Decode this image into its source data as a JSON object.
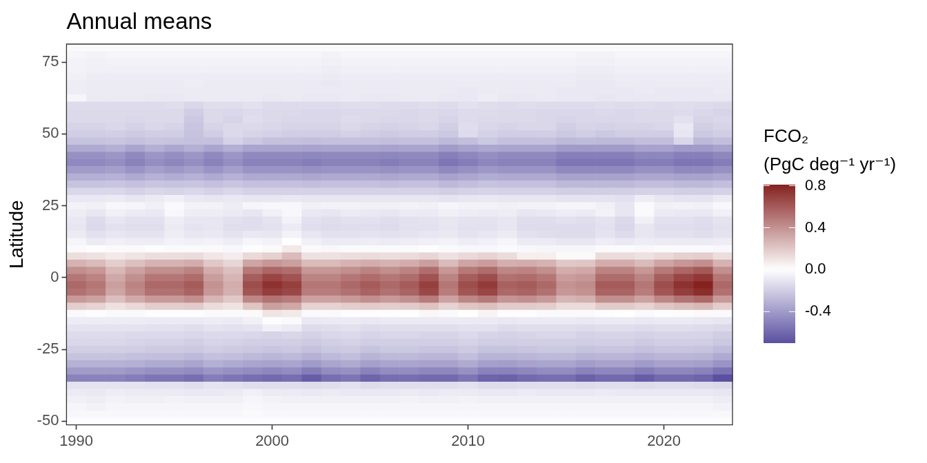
{
  "chart_data": {
    "type": "heatmap",
    "title": "Annual means",
    "ylabel": "Latitude",
    "clabel": "FCO₂\n(PgC deg⁻¹ yr⁻¹)",
    "categories": [
      "1990",
      null,
      null,
      null,
      null,
      null,
      null,
      null,
      null,
      null,
      "2000",
      null,
      null,
      null,
      null,
      null,
      null,
      null,
      null,
      null,
      "2010",
      null,
      null,
      null,
      null,
      null,
      null,
      null,
      null,
      null,
      "2020",
      null,
      null,
      null
    ],
    "y_categories": [
      null,
      null,
      "75",
      null,
      null,
      null,
      null,
      null,
      null,
      null,
      null,
      null,
      "50",
      null,
      null,
      null,
      null,
      null,
      null,
      null,
      null,
      null,
      "25",
      null,
      null,
      null,
      null,
      null,
      null,
      null,
      null,
      null,
      "0",
      null,
      null,
      null,
      null,
      null,
      null,
      null,
      null,
      null,
      "-25",
      null,
      null,
      null,
      null,
      null,
      null,
      null,
      null,
      null,
      "-50"
    ],
    "clim": [
      -0.7,
      0.81
    ],
    "cticks": [
      0.8,
      0.4,
      {
        "value": 0,
        "label": "0.0"
      },
      -0.4
    ],
    "cells": [
      [
        -0.02,
        -0.02,
        -0.02,
        -0.02,
        -0.02,
        -0.02,
        -0.02,
        -0.02,
        -0.02,
        -0.02,
        -0.02,
        -0.02,
        -0.02,
        -0.02,
        -0.02,
        -0.02,
        -0.02,
        -0.02,
        -0.02,
        -0.02,
        -0.02,
        -0.02,
        -0.02,
        -0.02,
        -0.02,
        -0.02,
        -0.02,
        -0.02,
        -0.02,
        -0.02,
        -0.02,
        -0.02,
        -0.02,
        -0.02
      ],
      [
        -0.04,
        -0.05,
        -0.04,
        -0.04,
        -0.04,
        -0.04,
        -0.04,
        -0.04,
        -0.04,
        -0.04,
        -0.04,
        -0.04,
        -0.04,
        -0.05,
        -0.04,
        -0.04,
        -0.04,
        -0.04,
        -0.04,
        -0.04,
        -0.04,
        -0.04,
        -0.04,
        -0.04,
        -0.04,
        -0.04,
        -0.05,
        -0.05,
        -0.04,
        -0.04,
        -0.04,
        -0.04,
        -0.04,
        -0.04
      ],
      [
        -0.05,
        -0.06,
        -0.05,
        -0.05,
        -0.05,
        -0.05,
        -0.05,
        -0.05,
        -0.05,
        -0.05,
        -0.05,
        -0.05,
        -0.05,
        -0.06,
        -0.05,
        -0.05,
        -0.05,
        -0.05,
        -0.05,
        -0.05,
        -0.05,
        -0.05,
        -0.05,
        -0.05,
        -0.05,
        -0.05,
        -0.06,
        -0.06,
        -0.05,
        -0.05,
        -0.05,
        -0.05,
        -0.05,
        -0.05
      ],
      [
        -0.05,
        -0.06,
        -0.06,
        -0.06,
        -0.06,
        -0.06,
        -0.06,
        -0.06,
        -0.06,
        -0.06,
        -0.06,
        -0.06,
        -0.06,
        -0.07,
        -0.06,
        -0.06,
        -0.06,
        -0.06,
        -0.06,
        -0.06,
        -0.06,
        -0.06,
        -0.06,
        -0.06,
        -0.06,
        -0.06,
        -0.07,
        -0.07,
        -0.06,
        -0.06,
        -0.06,
        -0.06,
        -0.06,
        -0.06
      ],
      [
        -0.06,
        -0.07,
        -0.07,
        -0.07,
        -0.07,
        -0.07,
        -0.07,
        -0.07,
        -0.07,
        -0.07,
        -0.07,
        -0.07,
        -0.07,
        -0.08,
        -0.07,
        -0.07,
        -0.07,
        -0.07,
        -0.07,
        -0.07,
        -0.07,
        -0.07,
        -0.07,
        -0.07,
        -0.07,
        -0.07,
        -0.08,
        -0.08,
        -0.07,
        -0.07,
        -0.07,
        -0.07,
        -0.07,
        -0.07
      ],
      [
        -0.07,
        -0.08,
        -0.08,
        -0.08,
        -0.08,
        -0.08,
        -0.07,
        -0.08,
        -0.08,
        -0.08,
        -0.08,
        -0.08,
        -0.08,
        -0.09,
        -0.08,
        -0.08,
        -0.08,
        -0.08,
        -0.08,
        -0.08,
        -0.08,
        -0.08,
        -0.08,
        -0.08,
        -0.08,
        -0.08,
        -0.09,
        -0.09,
        -0.08,
        -0.08,
        -0.08,
        -0.08,
        -0.08,
        -0.08
      ],
      [
        -0.07,
        -0.08,
        -0.08,
        -0.08,
        -0.08,
        -0.08,
        -0.08,
        -0.08,
        -0.08,
        -0.08,
        -0.08,
        -0.08,
        -0.08,
        -0.08,
        -0.08,
        -0.08,
        -0.08,
        -0.08,
        -0.08,
        -0.08,
        -0.09,
        -0.08,
        -0.08,
        -0.08,
        -0.08,
        -0.09,
        -0.09,
        -0.09,
        -0.09,
        -0.08,
        -0.09,
        -0.09,
        -0.09,
        -0.08
      ],
      [
        -0.04,
        -0.08,
        -0.08,
        -0.08,
        -0.09,
        -0.09,
        -0.08,
        -0.08,
        -0.08,
        -0.08,
        -0.09,
        -0.08,
        -0.09,
        -0.09,
        -0.08,
        -0.09,
        -0.09,
        -0.08,
        -0.08,
        -0.09,
        -0.09,
        -0.07,
        -0.09,
        -0.09,
        -0.08,
        -0.09,
        -0.09,
        -0.1,
        -0.09,
        -0.09,
        -0.09,
        -0.09,
        -0.09,
        -0.09
      ],
      [
        -0.14,
        -0.14,
        -0.14,
        -0.14,
        -0.14,
        -0.13,
        -0.16,
        -0.13,
        -0.13,
        -0.12,
        -0.14,
        -0.14,
        -0.14,
        -0.14,
        -0.13,
        -0.13,
        -0.14,
        -0.14,
        -0.13,
        -0.14,
        -0.12,
        -0.13,
        -0.14,
        -0.13,
        -0.14,
        -0.14,
        -0.14,
        -0.13,
        -0.14,
        -0.13,
        -0.14,
        -0.13,
        -0.14,
        -0.15
      ],
      [
        -0.15,
        -0.15,
        -0.15,
        -0.15,
        -0.15,
        -0.15,
        -0.2,
        -0.15,
        -0.16,
        -0.14,
        -0.15,
        -0.15,
        -0.16,
        -0.16,
        -0.15,
        -0.15,
        -0.15,
        -0.16,
        -0.15,
        -0.16,
        -0.14,
        -0.14,
        -0.15,
        -0.15,
        -0.16,
        -0.16,
        -0.16,
        -0.15,
        -0.16,
        -0.15,
        -0.15,
        -0.14,
        -0.16,
        -0.17
      ],
      [
        -0.15,
        -0.15,
        -0.15,
        -0.16,
        -0.15,
        -0.15,
        -0.22,
        -0.15,
        -0.17,
        -0.13,
        -0.15,
        -0.16,
        -0.16,
        -0.16,
        -0.14,
        -0.15,
        -0.16,
        -0.16,
        -0.15,
        -0.17,
        -0.14,
        -0.15,
        -0.15,
        -0.15,
        -0.16,
        -0.17,
        -0.16,
        -0.16,
        -0.16,
        -0.15,
        -0.15,
        -0.12,
        -0.17,
        -0.16
      ],
      [
        -0.17,
        -0.17,
        -0.16,
        -0.18,
        -0.16,
        -0.17,
        -0.23,
        -0.17,
        -0.15,
        -0.15,
        -0.16,
        -0.17,
        -0.17,
        -0.17,
        -0.15,
        -0.17,
        -0.18,
        -0.17,
        -0.16,
        -0.19,
        -0.13,
        -0.16,
        -0.17,
        -0.16,
        -0.16,
        -0.19,
        -0.17,
        -0.18,
        -0.17,
        -0.17,
        -0.16,
        -0.09,
        -0.19,
        -0.17
      ],
      [
        -0.2,
        -0.2,
        -0.19,
        -0.21,
        -0.2,
        -0.2,
        -0.24,
        -0.2,
        -0.15,
        -0.17,
        -0.18,
        -0.2,
        -0.2,
        -0.2,
        -0.18,
        -0.2,
        -0.21,
        -0.2,
        -0.2,
        -0.22,
        -0.14,
        -0.18,
        -0.2,
        -0.2,
        -0.19,
        -0.22,
        -0.2,
        -0.22,
        -0.2,
        -0.2,
        -0.2,
        -0.1,
        -0.22,
        -0.2
      ],
      [
        -0.24,
        -0.24,
        -0.23,
        -0.25,
        -0.23,
        -0.24,
        -0.25,
        -0.25,
        -0.18,
        -0.22,
        -0.25,
        -0.25,
        -0.26,
        -0.25,
        -0.25,
        -0.25,
        -0.26,
        -0.25,
        -0.25,
        -0.28,
        -0.26,
        -0.22,
        -0.25,
        -0.25,
        -0.25,
        -0.28,
        -0.27,
        -0.28,
        -0.28,
        -0.26,
        -0.26,
        -0.16,
        -0.28,
        -0.26
      ],
      [
        -0.34,
        -0.34,
        -0.32,
        -0.36,
        -0.32,
        -0.35,
        -0.32,
        -0.36,
        -0.32,
        -0.36,
        -0.36,
        -0.36,
        -0.37,
        -0.36,
        -0.36,
        -0.36,
        -0.37,
        -0.36,
        -0.36,
        -0.4,
        -0.37,
        -0.35,
        -0.36,
        -0.36,
        -0.36,
        -0.4,
        -0.4,
        -0.4,
        -0.4,
        -0.37,
        -0.37,
        -0.4,
        -0.4,
        -0.37
      ],
      [
        -0.44,
        -0.44,
        -0.42,
        -0.47,
        -0.42,
        -0.45,
        -0.42,
        -0.47,
        -0.42,
        -0.47,
        -0.47,
        -0.47,
        -0.48,
        -0.47,
        -0.47,
        -0.47,
        -0.48,
        -0.47,
        -0.47,
        -0.51,
        -0.48,
        -0.45,
        -0.47,
        -0.47,
        -0.47,
        -0.51,
        -0.51,
        -0.51,
        -0.51,
        -0.48,
        -0.48,
        -0.51,
        -0.51,
        -0.48
      ],
      [
        -0.47,
        -0.47,
        -0.45,
        -0.5,
        -0.45,
        -0.48,
        -0.45,
        -0.5,
        -0.45,
        -0.5,
        -0.5,
        -0.5,
        -0.52,
        -0.5,
        -0.5,
        -0.5,
        -0.52,
        -0.5,
        -0.5,
        -0.55,
        -0.52,
        -0.48,
        -0.5,
        -0.5,
        -0.5,
        -0.55,
        -0.55,
        -0.55,
        -0.55,
        -0.52,
        -0.52,
        -0.55,
        -0.55,
        -0.52
      ],
      [
        -0.4,
        -0.4,
        -0.38,
        -0.43,
        -0.38,
        -0.41,
        -0.38,
        -0.43,
        -0.38,
        -0.43,
        -0.43,
        -0.43,
        -0.44,
        -0.43,
        -0.43,
        -0.43,
        -0.44,
        -0.43,
        -0.43,
        -0.47,
        -0.44,
        -0.41,
        -0.43,
        -0.43,
        -0.43,
        -0.47,
        -0.47,
        -0.47,
        -0.47,
        -0.44,
        -0.44,
        -0.47,
        -0.47,
        -0.44
      ],
      [
        -0.32,
        -0.32,
        -0.31,
        -0.34,
        -0.31,
        -0.33,
        -0.31,
        -0.34,
        -0.31,
        -0.34,
        -0.34,
        -0.34,
        -0.35,
        -0.34,
        -0.34,
        -0.34,
        -0.35,
        -0.34,
        -0.34,
        -0.37,
        -0.35,
        -0.33,
        -0.34,
        -0.34,
        -0.34,
        -0.37,
        -0.37,
        -0.37,
        -0.37,
        -0.35,
        -0.35,
        -0.37,
        -0.37,
        -0.35
      ],
      [
        -0.24,
        -0.24,
        -0.23,
        -0.25,
        -0.23,
        -0.24,
        -0.23,
        -0.25,
        -0.23,
        -0.25,
        -0.25,
        -0.25,
        -0.26,
        -0.25,
        -0.25,
        -0.25,
        -0.26,
        -0.25,
        -0.25,
        -0.28,
        -0.26,
        -0.24,
        -0.25,
        -0.25,
        -0.25,
        -0.28,
        -0.28,
        -0.28,
        -0.28,
        -0.26,
        -0.26,
        -0.28,
        -0.28,
        -0.26
      ],
      [
        -0.16,
        -0.16,
        -0.16,
        -0.18,
        -0.16,
        -0.17,
        -0.16,
        -0.18,
        -0.16,
        -0.18,
        -0.18,
        -0.18,
        -0.18,
        -0.18,
        -0.18,
        -0.18,
        -0.18,
        -0.18,
        -0.18,
        -0.19,
        -0.18,
        -0.17,
        -0.18,
        -0.18,
        -0.18,
        -0.19,
        -0.19,
        -0.19,
        -0.19,
        -0.18,
        -0.18,
        -0.19,
        -0.19,
        -0.18
      ],
      [
        -0.09,
        -0.09,
        -0.08,
        -0.1,
        -0.08,
        -0.06,
        -0.09,
        -0.1,
        -0.09,
        -0.1,
        -0.1,
        -0.09,
        -0.1,
        -0.1,
        -0.1,
        -0.1,
        -0.1,
        -0.1,
        -0.1,
        -0.11,
        -0.1,
        -0.09,
        -0.1,
        -0.1,
        -0.1,
        -0.11,
        -0.11,
        -0.11,
        -0.12,
        -0.07,
        -0.1,
        -0.11,
        -0.11,
        -0.08
      ],
      [
        -0.05,
        -0.06,
        -0.03,
        -0.04,
        -0.06,
        -0.02,
        -0.05,
        -0.05,
        -0.07,
        -0.04,
        -0.03,
        -0.03,
        -0.06,
        -0.05,
        -0.05,
        -0.06,
        -0.06,
        -0.05,
        -0.06,
        -0.04,
        -0.05,
        -0.05,
        -0.06,
        -0.05,
        -0.05,
        -0.04,
        -0.04,
        -0.06,
        -0.1,
        -0.02,
        -0.06,
        -0.05,
        -0.06,
        -0.03
      ],
      [
        -0.07,
        -0.1,
        -0.06,
        -0.08,
        -0.09,
        -0.03,
        -0.07,
        -0.07,
        -0.08,
        -0.1,
        -0.06,
        -0.03,
        -0.09,
        -0.1,
        -0.08,
        -0.09,
        -0.1,
        -0.08,
        -0.08,
        -0.06,
        -0.07,
        -0.08,
        -0.07,
        -0.1,
        -0.09,
        -0.07,
        -0.08,
        -0.05,
        -0.1,
        -0.02,
        -0.08,
        -0.09,
        -0.09,
        -0.06
      ],
      [
        -0.09,
        -0.14,
        -0.1,
        -0.12,
        -0.12,
        -0.07,
        -0.1,
        -0.1,
        -0.12,
        -0.13,
        -0.11,
        -0.05,
        -0.12,
        -0.13,
        -0.12,
        -0.12,
        -0.13,
        -0.12,
        -0.11,
        -0.1,
        -0.11,
        -0.11,
        -0.1,
        -0.13,
        -0.13,
        -0.12,
        -0.13,
        -0.11,
        -0.15,
        -0.06,
        -0.12,
        -0.12,
        -0.13,
        -0.11
      ],
      [
        -0.1,
        -0.15,
        -0.12,
        -0.13,
        -0.13,
        -0.08,
        -0.11,
        -0.1,
        -0.13,
        -0.13,
        -0.12,
        -0.08,
        -0.13,
        -0.14,
        -0.13,
        -0.13,
        -0.14,
        -0.12,
        -0.12,
        -0.1,
        -0.12,
        -0.12,
        -0.1,
        -0.14,
        -0.14,
        -0.14,
        -0.14,
        -0.12,
        -0.16,
        -0.1,
        -0.13,
        -0.13,
        -0.14,
        -0.12
      ],
      [
        -0.08,
        -0.12,
        -0.1,
        -0.11,
        -0.11,
        -0.07,
        -0.1,
        -0.09,
        -0.11,
        -0.09,
        -0.1,
        -0.05,
        -0.1,
        -0.12,
        -0.12,
        -0.11,
        -0.12,
        -0.11,
        -0.1,
        -0.09,
        -0.11,
        -0.1,
        -0.08,
        -0.12,
        -0.13,
        -0.14,
        -0.14,
        -0.11,
        -0.14,
        -0.1,
        -0.12,
        -0.12,
        -0.13,
        -0.11
      ],
      [
        -0.04,
        -0.08,
        -0.06,
        -0.07,
        -0.07,
        -0.05,
        -0.06,
        -0.05,
        -0.07,
        -0.04,
        -0.05,
        0,
        -0.06,
        -0.08,
        -0.08,
        -0.07,
        -0.08,
        -0.07,
        -0.06,
        -0.05,
        -0.07,
        -0.06,
        -0.04,
        -0.08,
        -0.08,
        -0.1,
        -0.1,
        -0.07,
        -0.09,
        -0.07,
        -0.08,
        -0.08,
        -0.08,
        -0.07
      ],
      [
        -0.02,
        -0.01,
        -0.02,
        -0.02,
        -0.01,
        -0.02,
        -0.02,
        -0.02,
        -0.03,
        -0.01,
        0.02,
        0.08,
        -0.02,
        -0.03,
        -0.02,
        -0.02,
        -0.02,
        -0.02,
        -0.01,
        -0.02,
        -0.03,
        -0.03,
        -0.02,
        -0.03,
        -0.04,
        -0.04,
        -0.04,
        -0.02,
        -0.02,
        -0.03,
        -0.02,
        -0.02,
        -0.02,
        -0.03
      ],
      [
        0.12,
        0.11,
        0.08,
        0.1,
        0.12,
        0.12,
        0.13,
        0.09,
        0.07,
        0.14,
        0.17,
        0.25,
        0.11,
        0.11,
        0.12,
        0.13,
        0.12,
        0.13,
        0.15,
        0.11,
        0.14,
        0.16,
        0.13,
        0.06,
        0.06,
        0.02,
        0.02,
        0.13,
        0.13,
        0.11,
        0.14,
        0.17,
        0.18,
        0.12
      ],
      [
        0.28,
        0.25,
        0.18,
        0.23,
        0.28,
        0.28,
        0.3,
        0.2,
        0.15,
        0.33,
        0.38,
        0.35,
        0.25,
        0.25,
        0.28,
        0.3,
        0.28,
        0.3,
        0.35,
        0.25,
        0.33,
        0.36,
        0.29,
        0.3,
        0.28,
        0.2,
        0.21,
        0.3,
        0.3,
        0.25,
        0.33,
        0.38,
        0.41,
        0.28
      ],
      [
        0.41,
        0.38,
        0.26,
        0.34,
        0.41,
        0.41,
        0.45,
        0.3,
        0.23,
        0.49,
        0.56,
        0.53,
        0.38,
        0.38,
        0.41,
        0.45,
        0.41,
        0.45,
        0.53,
        0.38,
        0.49,
        0.54,
        0.44,
        0.45,
        0.41,
        0.3,
        0.32,
        0.45,
        0.45,
        0.38,
        0.49,
        0.56,
        0.61,
        0.41
      ],
      [
        0.5,
        0.45,
        0.32,
        0.41,
        0.5,
        0.5,
        0.54,
        0.36,
        0.27,
        0.59,
        0.68,
        0.63,
        0.45,
        0.45,
        0.5,
        0.54,
        0.5,
        0.54,
        0.63,
        0.45,
        0.59,
        0.65,
        0.52,
        0.54,
        0.5,
        0.36,
        0.38,
        0.54,
        0.54,
        0.45,
        0.59,
        0.68,
        0.73,
        0.5
      ],
      [
        0.55,
        0.5,
        0.35,
        0.45,
        0.55,
        0.55,
        0.6,
        0.4,
        0.3,
        0.65,
        0.75,
        0.7,
        0.5,
        0.5,
        0.55,
        0.6,
        0.55,
        0.6,
        0.7,
        0.5,
        0.65,
        0.72,
        0.58,
        0.6,
        0.55,
        0.4,
        0.42,
        0.6,
        0.6,
        0.5,
        0.65,
        0.75,
        0.81,
        0.55
      ],
      [
        0.52,
        0.48,
        0.33,
        0.43,
        0.52,
        0.52,
        0.57,
        0.38,
        0.29,
        0.62,
        0.71,
        0.67,
        0.48,
        0.48,
        0.52,
        0.57,
        0.52,
        0.57,
        0.67,
        0.48,
        0.62,
        0.68,
        0.55,
        0.57,
        0.52,
        0.38,
        0.4,
        0.57,
        0.57,
        0.48,
        0.62,
        0.71,
        0.77,
        0.52
      ],
      [
        0.37,
        0.34,
        0.24,
        0.31,
        0.37,
        0.37,
        0.41,
        0.27,
        0.2,
        0.44,
        0.51,
        0.48,
        0.34,
        0.34,
        0.37,
        0.41,
        0.37,
        0.41,
        0.48,
        0.34,
        0.44,
        0.49,
        0.39,
        0.41,
        0.37,
        0.27,
        0.29,
        0.41,
        0.41,
        0.34,
        0.44,
        0.51,
        0.55,
        0.37
      ],
      [
        0.18,
        0.16,
        0.11,
        0.14,
        0.18,
        0.18,
        0.19,
        0.13,
        0.1,
        0.21,
        0.35,
        0.32,
        0.16,
        0.16,
        0.18,
        0.19,
        0.18,
        0.19,
        0.22,
        0.16,
        0.21,
        0.23,
        0.19,
        0.19,
        0.18,
        0.13,
        0.13,
        0.19,
        0.19,
        0.16,
        0.21,
        0.24,
        0.26,
        0.18
      ],
      [
        -0.02,
        -0.01,
        -0.02,
        -0.02,
        -0.01,
        -0.01,
        -0.01,
        -0.02,
        -0.02,
        0.02,
        0.1,
        0.08,
        -0.02,
        -0.02,
        -0.01,
        -0.01,
        -0.01,
        0,
        0.03,
        -0.02,
        0,
        0.04,
        -0.01,
        -0.01,
        -0.02,
        -0.02,
        -0.02,
        -0.01,
        0,
        -0.02,
        -0.01,
        0.01,
        0.02,
        -0.02
      ],
      [
        -0.07,
        -0.07,
        -0.07,
        -0.07,
        -0.08,
        -0.08,
        -0.08,
        -0.07,
        -0.08,
        -0.06,
        -0.01,
        -0.02,
        -0.09,
        -0.08,
        -0.08,
        -0.09,
        -0.08,
        -0.08,
        -0.08,
        -0.08,
        -0.08,
        -0.08,
        -0.09,
        -0.08,
        -0.08,
        -0.08,
        -0.09,
        -0.08,
        -0.08,
        -0.09,
        -0.08,
        -0.08,
        -0.09,
        -0.1
      ],
      [
        -0.11,
        -0.11,
        -0.11,
        -0.11,
        -0.12,
        -0.12,
        -0.13,
        -0.11,
        -0.12,
        -0.11,
        -0.06,
        -0.08,
        -0.14,
        -0.13,
        -0.12,
        -0.14,
        -0.13,
        -0.13,
        -0.13,
        -0.13,
        -0.12,
        -0.12,
        -0.14,
        -0.13,
        -0.13,
        -0.13,
        -0.14,
        -0.13,
        -0.13,
        -0.14,
        -0.13,
        -0.13,
        -0.14,
        -0.15
      ],
      [
        -0.14,
        -0.14,
        -0.14,
        -0.15,
        -0.15,
        -0.15,
        -0.16,
        -0.15,
        -0.15,
        -0.16,
        -0.17,
        -0.16,
        -0.18,
        -0.16,
        -0.15,
        -0.17,
        -0.16,
        -0.16,
        -0.17,
        -0.17,
        -0.15,
        -0.17,
        -0.18,
        -0.17,
        -0.16,
        -0.16,
        -0.18,
        -0.17,
        -0.17,
        -0.18,
        -0.17,
        -0.17,
        -0.17,
        -0.2
      ],
      [
        -0.16,
        -0.16,
        -0.16,
        -0.17,
        -0.18,
        -0.18,
        -0.19,
        -0.17,
        -0.18,
        -0.19,
        -0.19,
        -0.19,
        -0.21,
        -0.19,
        -0.18,
        -0.2,
        -0.19,
        -0.19,
        -0.19,
        -0.19,
        -0.18,
        -0.2,
        -0.2,
        -0.19,
        -0.19,
        -0.19,
        -0.2,
        -0.19,
        -0.19,
        -0.21,
        -0.19,
        -0.19,
        -0.2,
        -0.22
      ],
      [
        -0.19,
        -0.19,
        -0.19,
        -0.2,
        -0.21,
        -0.21,
        -0.22,
        -0.2,
        -0.21,
        -0.22,
        -0.23,
        -0.22,
        -0.25,
        -0.22,
        -0.21,
        -0.24,
        -0.22,
        -0.22,
        -0.23,
        -0.23,
        -0.21,
        -0.24,
        -0.24,
        -0.23,
        -0.22,
        -0.22,
        -0.24,
        -0.23,
        -0.23,
        -0.25,
        -0.23,
        -0.23,
        -0.24,
        -0.27
      ],
      [
        -0.24,
        -0.24,
        -0.24,
        -0.25,
        -0.26,
        -0.26,
        -0.28,
        -0.25,
        -0.26,
        -0.28,
        -0.29,
        -0.28,
        -0.31,
        -0.28,
        -0.26,
        -0.3,
        -0.28,
        -0.28,
        -0.29,
        -0.29,
        -0.26,
        -0.3,
        -0.3,
        -0.29,
        -0.28,
        -0.28,
        -0.3,
        -0.29,
        -0.29,
        -0.31,
        -0.29,
        -0.29,
        -0.3,
        -0.34
      ],
      [
        -0.31,
        -0.31,
        -0.31,
        -0.32,
        -0.34,
        -0.34,
        -0.36,
        -0.32,
        -0.34,
        -0.36,
        -0.37,
        -0.36,
        -0.4,
        -0.36,
        -0.34,
        -0.38,
        -0.36,
        -0.36,
        -0.37,
        -0.37,
        -0.34,
        -0.38,
        -0.39,
        -0.37,
        -0.36,
        -0.36,
        -0.39,
        -0.37,
        -0.37,
        -0.4,
        -0.37,
        -0.37,
        -0.38,
        -0.43
      ],
      [
        -0.4,
        -0.4,
        -0.4,
        -0.42,
        -0.44,
        -0.44,
        -0.46,
        -0.42,
        -0.44,
        -0.46,
        -0.48,
        -0.46,
        -0.52,
        -0.46,
        -0.44,
        -0.5,
        -0.46,
        -0.46,
        -0.48,
        -0.48,
        -0.44,
        -0.5,
        -0.5,
        -0.48,
        -0.46,
        -0.46,
        -0.5,
        -0.48,
        -0.48,
        -0.52,
        -0.48,
        -0.48,
        -0.5,
        -0.56
      ],
      [
        -0.5,
        -0.5,
        -0.5,
        -0.52,
        -0.55,
        -0.55,
        -0.58,
        -0.52,
        -0.55,
        -0.58,
        -0.6,
        -0.58,
        -0.65,
        -0.58,
        -0.55,
        -0.62,
        -0.58,
        -0.58,
        -0.6,
        -0.6,
        -0.55,
        -0.62,
        -0.63,
        -0.6,
        -0.58,
        -0.58,
        -0.63,
        -0.6,
        -0.6,
        -0.65,
        -0.6,
        -0.6,
        -0.62,
        -0.7
      ],
      [
        -0.11,
        -0.11,
        -0.11,
        -0.11,
        -0.12,
        -0.12,
        -0.13,
        -0.11,
        -0.12,
        -0.13,
        -0.13,
        -0.13,
        -0.14,
        -0.13,
        -0.12,
        -0.14,
        -0.13,
        -0.13,
        -0.13,
        -0.13,
        -0.12,
        -0.14,
        -0.14,
        -0.13,
        -0.13,
        -0.13,
        -0.14,
        -0.13,
        -0.13,
        -0.14,
        -0.13,
        -0.13,
        -0.14,
        -0.15
      ],
      [
        -0.08,
        -0.09,
        -0.07,
        -0.08,
        -0.08,
        -0.08,
        -0.09,
        -0.09,
        -0.08,
        -0.06,
        -0.08,
        -0.08,
        -0.09,
        -0.08,
        -0.09,
        -0.09,
        -0.09,
        -0.08,
        -0.09,
        -0.08,
        -0.08,
        -0.09,
        -0.09,
        -0.08,
        -0.09,
        -0.09,
        -0.09,
        -0.08,
        -0.09,
        -0.09,
        -0.09,
        -0.09,
        -0.09,
        -0.1
      ],
      [
        -0.06,
        -0.07,
        -0.05,
        -0.06,
        -0.06,
        -0.05,
        -0.06,
        -0.06,
        -0.06,
        -0.04,
        -0.05,
        -0.06,
        -0.06,
        -0.06,
        -0.06,
        -0.06,
        -0.06,
        -0.05,
        -0.06,
        -0.06,
        -0.05,
        -0.06,
        -0.06,
        -0.06,
        -0.06,
        -0.06,
        -0.06,
        -0.06,
        -0.06,
        -0.06,
        -0.06,
        -0.06,
        -0.06,
        -0.07
      ],
      [
        -0.04,
        -0.05,
        -0.04,
        -0.04,
        -0.04,
        -0.04,
        -0.04,
        -0.04,
        -0.04,
        -0.03,
        -0.04,
        -0.04,
        -0.04,
        -0.04,
        -0.04,
        -0.04,
        -0.04,
        -0.04,
        -0.04,
        -0.04,
        -0.04,
        -0.04,
        -0.04,
        -0.04,
        -0.04,
        -0.04,
        -0.04,
        -0.04,
        -0.04,
        -0.04,
        -0.04,
        -0.04,
        -0.04,
        -0.05
      ],
      [
        -0.03,
        -0.03,
        -0.03,
        -0.03,
        -0.03,
        -0.03,
        -0.03,
        -0.03,
        -0.03,
        -0.02,
        -0.03,
        -0.03,
        -0.03,
        -0.03,
        -0.03,
        -0.03,
        -0.03,
        -0.03,
        -0.03,
        -0.03,
        -0.03,
        -0.03,
        -0.03,
        -0.03,
        -0.03,
        -0.03,
        -0.03,
        -0.03,
        -0.03,
        -0.03,
        -0.03,
        -0.03,
        -0.03,
        -0.03
      ],
      [
        -0.01,
        -0.01,
        -0.01,
        -0.01,
        -0.01,
        -0.01,
        -0.01,
        -0.01,
        -0.01,
        -0.01,
        -0.01,
        -0.01,
        -0.01,
        -0.01,
        -0.01,
        -0.01,
        -0.01,
        -0.01,
        -0.01,
        -0.01,
        -0.01,
        -0.01,
        -0.01,
        -0.01,
        -0.01,
        -0.01,
        -0.01,
        -0.01,
        -0.01,
        -0.01,
        -0.01,
        -0.01,
        -0.01,
        -0.01
      ]
    ]
  }
}
